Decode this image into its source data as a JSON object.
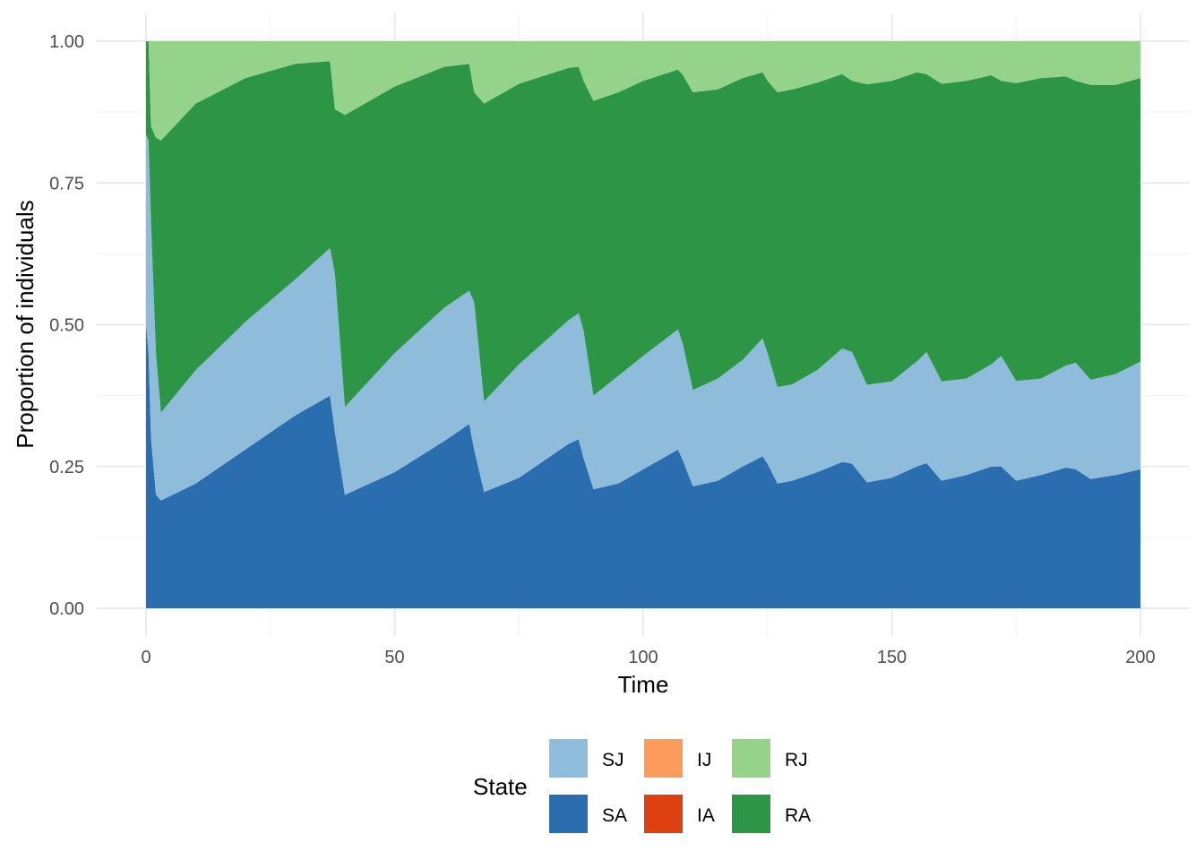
{
  "chart_data": {
    "type": "area",
    "stacked": true,
    "xlabel": "Time",
    "ylabel": "Proportion of individuals",
    "xlim": [
      0,
      200
    ],
    "ylim": [
      0,
      1
    ],
    "x_ticks": [
      0,
      50,
      100,
      150,
      200
    ],
    "x_tick_labels": [
      "0",
      "50",
      "100",
      "150",
      "200"
    ],
    "y_ticks": [
      0,
      0.25,
      0.5,
      0.75,
      1.0
    ],
    "y_tick_labels": [
      "0.00",
      "0.25",
      "0.50",
      "0.75",
      "1.00"
    ],
    "grid": true,
    "legend": {
      "title": "State",
      "position": "bottom",
      "items": [
        {
          "label": "SJ",
          "color": "#8fbcda"
        },
        {
          "label": "IJ",
          "color": "#fb9b5c"
        },
        {
          "label": "RJ",
          "color": "#95d38b"
        },
        {
          "label": "SA",
          "color": "#2b6eb0"
        },
        {
          "label": "IA",
          "color": "#df4012"
        },
        {
          "label": "RA",
          "color": "#2d9646"
        }
      ]
    },
    "stack_order_bottom_to_top": [
      "SA",
      "SJ",
      "IA",
      "IJ",
      "RA",
      "RJ"
    ],
    "x": [
      0,
      0.5,
      1,
      2,
      3,
      10,
      20,
      30,
      37,
      38,
      40,
      50,
      60,
      65,
      66,
      68,
      75,
      85,
      87,
      88,
      90,
      95,
      100,
      107,
      108,
      110,
      115,
      120,
      124,
      125,
      127,
      130,
      135,
      140,
      142,
      145,
      150,
      155,
      157,
      160,
      165,
      170,
      172,
      175,
      180,
      185,
      187,
      190,
      195,
      200
    ],
    "series": [
      {
        "name": "SA",
        "values": [
          0.5,
          0.45,
          0.3,
          0.2,
          0.19,
          0.22,
          0.28,
          0.34,
          0.375,
          0.31,
          0.2,
          0.24,
          0.295,
          0.325,
          0.28,
          0.205,
          0.23,
          0.29,
          0.298,
          0.265,
          0.21,
          0.22,
          0.245,
          0.28,
          0.26,
          0.215,
          0.225,
          0.25,
          0.268,
          0.255,
          0.22,
          0.225,
          0.24,
          0.258,
          0.255,
          0.222,
          0.23,
          0.25,
          0.256,
          0.225,
          0.235,
          0.25,
          0.25,
          0.225,
          0.235,
          0.248,
          0.245,
          0.228,
          0.235,
          0.245
        ]
      },
      {
        "name": "SJ",
        "values": [
          0.335,
          0.375,
          0.38,
          0.25,
          0.155,
          0.2,
          0.225,
          0.24,
          0.26,
          0.28,
          0.155,
          0.21,
          0.235,
          0.235,
          0.26,
          0.16,
          0.2,
          0.218,
          0.222,
          0.225,
          0.165,
          0.19,
          0.2,
          0.212,
          0.205,
          0.17,
          0.18,
          0.188,
          0.208,
          0.195,
          0.17,
          0.17,
          0.18,
          0.2,
          0.197,
          0.172,
          0.17,
          0.185,
          0.196,
          0.175,
          0.17,
          0.18,
          0.195,
          0.176,
          0.17,
          0.18,
          0.188,
          0.175,
          0.178,
          0.19
        ]
      },
      {
        "name": "IA",
        "values": [
          0,
          0,
          0,
          0,
          0,
          0,
          0,
          0,
          0,
          0,
          0,
          0,
          0,
          0,
          0,
          0,
          0,
          0,
          0,
          0,
          0,
          0,
          0,
          0,
          0,
          0,
          0,
          0,
          0,
          0,
          0,
          0,
          0,
          0,
          0,
          0,
          0,
          0,
          0,
          0,
          0,
          0,
          0,
          0,
          0,
          0,
          0,
          0,
          0,
          0
        ]
      },
      {
        "name": "IJ",
        "values": [
          0,
          0,
          0,
          0,
          0,
          0,
          0,
          0,
          0,
          0,
          0,
          0,
          0,
          0,
          0,
          0,
          0,
          0,
          0,
          0,
          0,
          0,
          0,
          0,
          0,
          0,
          0,
          0,
          0,
          0,
          0,
          0,
          0,
          0,
          0,
          0,
          0,
          0,
          0,
          0,
          0,
          0,
          0,
          0,
          0,
          0,
          0,
          0,
          0,
          0
        ]
      },
      {
        "name": "RA",
        "values": [
          0.165,
          0.175,
          0.17,
          0.38,
          0.48,
          0.47,
          0.43,
          0.38,
          0.33,
          0.29,
          0.515,
          0.47,
          0.425,
          0.4,
          0.37,
          0.525,
          0.495,
          0.445,
          0.435,
          0.44,
          0.52,
          0.5,
          0.485,
          0.458,
          0.475,
          0.525,
          0.51,
          0.497,
          0.469,
          0.48,
          0.52,
          0.52,
          0.507,
          0.484,
          0.478,
          0.53,
          0.53,
          0.51,
          0.49,
          0.525,
          0.525,
          0.51,
          0.485,
          0.525,
          0.53,
          0.51,
          0.497,
          0.52,
          0.51,
          0.5
        ]
      },
      {
        "name": "RJ",
        "values": [
          0,
          0,
          0.15,
          0.17,
          0.175,
          0.11,
          0.065,
          0.04,
          0.035,
          0.12,
          0.13,
          0.08,
          0.045,
          0.04,
          0.09,
          0.11,
          0.075,
          0.047,
          0.045,
          0.07,
          0.105,
          0.09,
          0.07,
          0.05,
          0.06,
          0.09,
          0.085,
          0.065,
          0.055,
          0.07,
          0.09,
          0.085,
          0.073,
          0.058,
          0.07,
          0.076,
          0.07,
          0.055,
          0.058,
          0.075,
          0.07,
          0.06,
          0.07,
          0.074,
          0.065,
          0.062,
          0.07,
          0.077,
          0.077,
          0.065
        ]
      }
    ]
  }
}
